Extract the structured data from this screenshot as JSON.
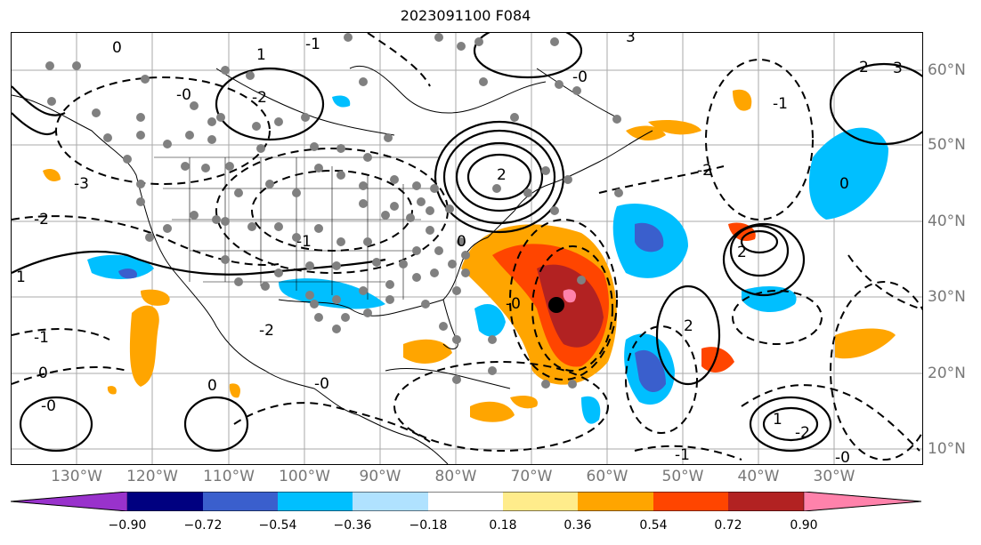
{
  "title": "2023091100 F084",
  "longitude_labels": [
    "130°W",
    "120°W",
    "110°W",
    "100°W",
    "90°W",
    "80°W",
    "70°W",
    "60°W",
    "50°W",
    "40°W",
    "30°W"
  ],
  "latitude_labels": [
    "60°N",
    "50°N",
    "40°N",
    "30°N",
    "20°N",
    "10°N"
  ],
  "colorbar": {
    "colors": [
      "#9932CC",
      "#000080",
      "#3A5FCD",
      "#00BFFF",
      "#B0E2FF",
      "#FFFFFF",
      "#FFEC8B",
      "#FFA500",
      "#FF4500",
      "#B22222",
      "#FF82AB"
    ],
    "tick_labels": [
      "−0.90",
      "−0.72",
      "−0.54",
      "−0.36",
      "−0.18",
      "0.18",
      "0.36",
      "0.54",
      "0.72",
      "0.90"
    ]
  },
  "contour_labels": [
    "0",
    "-1",
    "-2",
    "1",
    "2",
    "3",
    "-0",
    "-0",
    "-2",
    "2",
    "1",
    "-1",
    "0",
    "-1",
    "0",
    "-0",
    "2",
    "-2",
    "0",
    "-0",
    "1",
    "-1",
    "3",
    "0",
    "-2",
    "-1",
    "-0",
    "2",
    "-2",
    "-0",
    "-3"
  ],
  "map_features": {
    "storm_center_marker": "black-dot",
    "station_markers": "gray-dots"
  }
}
